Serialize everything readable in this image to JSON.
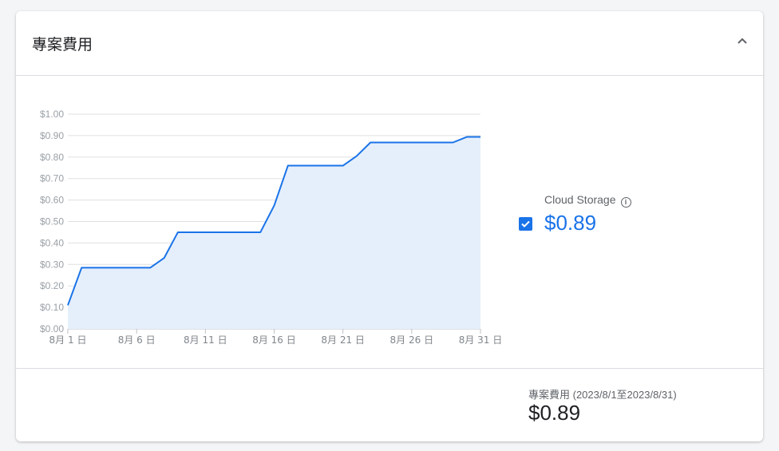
{
  "header": {
    "title": "專案費用",
    "collapse_icon": "chevron-up-icon"
  },
  "legend": {
    "name": "Cloud Storage",
    "info_icon": "info-icon",
    "checked": true,
    "value": "$0.89",
    "color": "#1a73e8"
  },
  "summary": {
    "label": "專案費用 (2023/8/1至2023/8/31)",
    "value": "$0.89"
  },
  "chart_data": {
    "type": "area",
    "x_ticks": [
      "8月 1 日",
      "8月 6 日",
      "8月 11 日",
      "8月 16 日",
      "8月 21 日",
      "8月 26 日",
      "8月 31 日"
    ],
    "y_ticks": [
      "$0.00",
      "$0.10",
      "$0.20",
      "$0.30",
      "$0.40",
      "$0.50",
      "$0.60",
      "$0.70",
      "$0.80",
      "$0.90",
      "$1.00"
    ],
    "ylim": [
      0,
      1.0
    ],
    "xlim": [
      1,
      31
    ],
    "grid": true,
    "series": [
      {
        "name": "Cloud Storage",
        "color": "#1a73e8",
        "fill": "#e5effc",
        "x": [
          1,
          2,
          3,
          4,
          5,
          6,
          7,
          8,
          9,
          10,
          11,
          12,
          13,
          14,
          15,
          16,
          17,
          18,
          19,
          20,
          21,
          22,
          23,
          24,
          25,
          26,
          27,
          28,
          29,
          30,
          31
        ],
        "y": [
          0.11,
          0.285,
          0.285,
          0.285,
          0.285,
          0.285,
          0.285,
          0.33,
          0.45,
          0.45,
          0.45,
          0.45,
          0.45,
          0.45,
          0.45,
          0.574,
          0.76,
          0.76,
          0.76,
          0.76,
          0.76,
          0.805,
          0.868,
          0.868,
          0.868,
          0.868,
          0.868,
          0.868,
          0.868,
          0.894,
          0.894
        ]
      }
    ]
  }
}
